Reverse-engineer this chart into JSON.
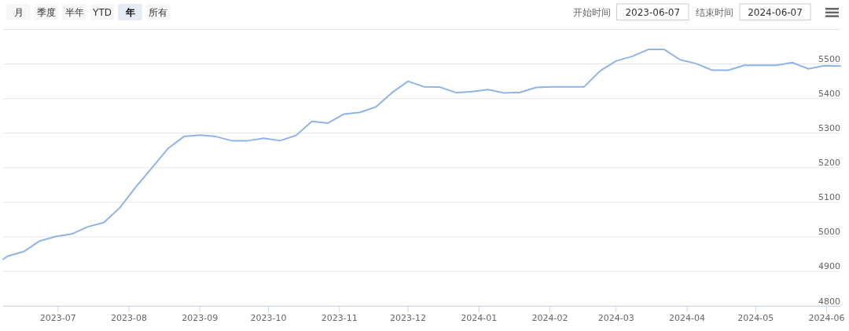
{
  "chart_data": {
    "type": "line",
    "x": [
      "2023-06-07",
      "2023-06-09",
      "2023-06-16",
      "2023-06-23",
      "2023-06-30",
      "2023-07-07",
      "2023-07-14",
      "2023-07-21",
      "2023-07-28",
      "2023-08-04",
      "2023-08-11",
      "2023-08-18",
      "2023-08-25",
      "2023-09-01",
      "2023-09-08",
      "2023-09-15",
      "2023-09-22",
      "2023-09-29",
      "2023-10-06",
      "2023-10-13",
      "2023-10-20",
      "2023-10-27",
      "2023-11-03",
      "2023-11-10",
      "2023-11-17",
      "2023-11-24",
      "2023-12-01",
      "2023-12-08",
      "2023-12-15",
      "2023-12-22",
      "2023-12-29",
      "2024-01-05",
      "2024-01-12",
      "2024-01-19",
      "2024-01-26",
      "2024-02-02",
      "2024-02-09",
      "2024-02-16",
      "2024-02-23",
      "2024-03-01",
      "2024-03-08",
      "2024-03-15",
      "2024-03-22",
      "2024-03-29",
      "2024-04-05",
      "2024-04-12",
      "2024-04-19",
      "2024-04-26",
      "2024-05-03",
      "2024-05-10",
      "2024-05-17",
      "2024-05-24",
      "2024-05-31",
      "2024-06-07"
    ],
    "series": [
      {
        "color": "#8fb4e6",
        "values": [
          4935,
          4944,
          4957,
          4988,
          5001,
          5008,
          5029,
          5041,
          5084,
          5144,
          5199,
          5255,
          5290,
          5294,
          5290,
          5278,
          5278,
          5285,
          5278,
          5293,
          5334,
          5329,
          5355,
          5360,
          5376,
          5417,
          5450,
          5434,
          5433,
          5417,
          5420,
          5426,
          5416,
          5418,
          5432,
          5434,
          5434,
          5434,
          5480,
          5509,
          5522,
          5542,
          5542,
          5512,
          5501,
          5482,
          5482,
          5496,
          5496,
          5496,
          5504,
          5486,
          5495,
          5494
        ]
      }
    ],
    "xlim": [
      "2023-06-07",
      "2024-06-07"
    ],
    "xticks": [
      "2023-07",
      "2023-08",
      "2023-09",
      "2023-10",
      "2023-11",
      "2023-12",
      "2024-01",
      "2024-02",
      "2024-03",
      "2024-04",
      "2024-05",
      "2024-06"
    ],
    "ylim": [
      4800,
      5600
    ],
    "yticks": [
      4800,
      4900,
      5000,
      5100,
      5200,
      5300,
      5400,
      5500,
      {
        "value": 5600,
        "label": null
      }
    ],
    "grid": "y",
    "annotations": [
      "月",
      "季度",
      "半年",
      "YTD",
      "年",
      "所有",
      "开始时间",
      "2023-06-07",
      "结束时间",
      "2024-06-07"
    ]
  }
}
